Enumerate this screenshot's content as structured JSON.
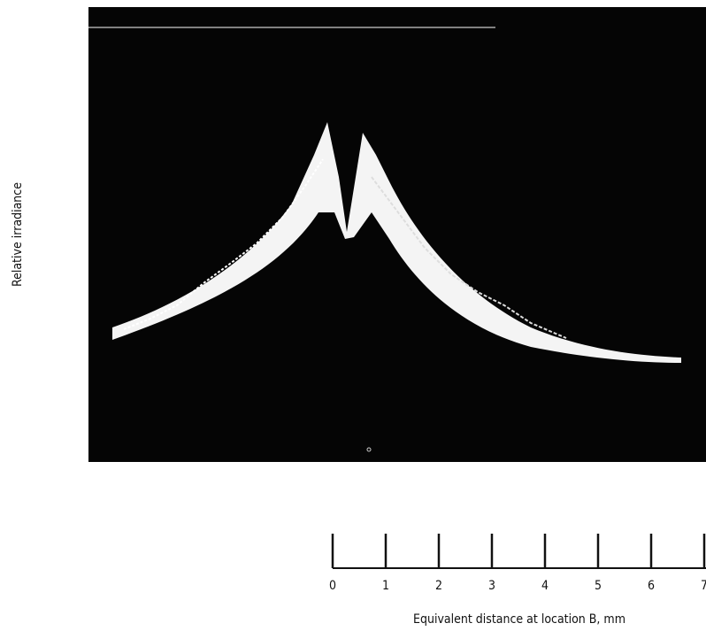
{
  "chart_data": {
    "type": "scale-bar",
    "ylabel": "Relative irradiance",
    "xlabel": "Equivalent distance at location B, mm",
    "xlim": [
      0,
      7
    ],
    "xticks": [
      0,
      1,
      2,
      3,
      4,
      5,
      6,
      7
    ]
  }
}
